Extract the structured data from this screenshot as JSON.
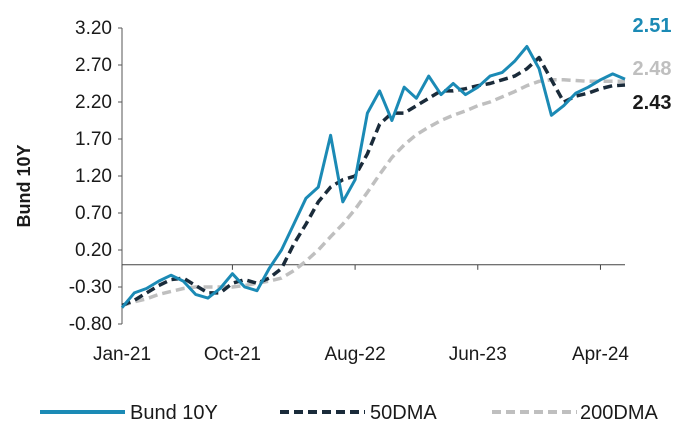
{
  "chart_data": {
    "type": "line",
    "ylabel": "Bund 10Y",
    "xlabel": "",
    "ylim": [
      -0.8,
      3.2
    ],
    "yticks": [
      "3.20",
      "2.70",
      "2.20",
      "1.70",
      "1.20",
      "0.70",
      "0.20",
      "-0.30",
      "-0.80"
    ],
    "xlim": [
      "2021-01",
      "2024-06"
    ],
    "xticks": [
      {
        "date": "2021-01",
        "label": "Jan-21"
      },
      {
        "date": "2021-10",
        "label": "Oct-21"
      },
      {
        "date": "2022-08",
        "label": "Aug-22"
      },
      {
        "date": "2023-06",
        "label": "Jun-23"
      },
      {
        "date": "2024-04",
        "label": "Apr-24"
      }
    ],
    "zero_line": 0,
    "legend_position": "bottom",
    "series": [
      {
        "name": "Bund 10Y",
        "color": "#1b8ab5",
        "style": "solid",
        "end_label": "2.51",
        "x": [
          "2021-01",
          "2021-02",
          "2021-03",
          "2021-04",
          "2021-05",
          "2021-06",
          "2021-07",
          "2021-08",
          "2021-09",
          "2021-10",
          "2021-11",
          "2021-12",
          "2022-01",
          "2022-02",
          "2022-03",
          "2022-04",
          "2022-05",
          "2022-06",
          "2022-07",
          "2022-08",
          "2022-09",
          "2022-10",
          "2022-11",
          "2022-12",
          "2023-01",
          "2023-02",
          "2023-03",
          "2023-04",
          "2023-05",
          "2023-06",
          "2023-07",
          "2023-08",
          "2023-09",
          "2023-10",
          "2023-11",
          "2023-12",
          "2024-01",
          "2024-02",
          "2024-03",
          "2024-04",
          "2024-05",
          "2024-06"
        ],
        "values": [
          -0.58,
          -0.38,
          -0.32,
          -0.22,
          -0.14,
          -0.22,
          -0.4,
          -0.45,
          -0.32,
          -0.12,
          -0.3,
          -0.35,
          -0.05,
          0.2,
          0.55,
          0.9,
          1.05,
          1.75,
          0.85,
          1.15,
          2.05,
          2.35,
          1.95,
          2.4,
          2.25,
          2.55,
          2.3,
          2.45,
          2.3,
          2.4,
          2.55,
          2.6,
          2.75,
          2.95,
          2.65,
          2.02,
          2.15,
          2.32,
          2.4,
          2.5,
          2.58,
          2.51
        ]
      },
      {
        "name": "50DMA",
        "color": "#1a2b3a",
        "style": "dashed",
        "end_label": "2.43",
        "x": [
          "2021-01",
          "2021-02",
          "2021-03",
          "2021-04",
          "2021-05",
          "2021-06",
          "2021-07",
          "2021-08",
          "2021-09",
          "2021-10",
          "2021-11",
          "2021-12",
          "2022-01",
          "2022-02",
          "2022-03",
          "2022-04",
          "2022-05",
          "2022-06",
          "2022-07",
          "2022-08",
          "2022-09",
          "2022-10",
          "2022-11",
          "2022-12",
          "2023-01",
          "2023-02",
          "2023-03",
          "2023-04",
          "2023-05",
          "2023-06",
          "2023-07",
          "2023-08",
          "2023-09",
          "2023-10",
          "2023-11",
          "2023-12",
          "2024-01",
          "2024-02",
          "2024-03",
          "2024-04",
          "2024-05",
          "2024-06"
        ],
        "values": [
          -0.55,
          -0.48,
          -0.38,
          -0.28,
          -0.2,
          -0.18,
          -0.28,
          -0.38,
          -0.38,
          -0.25,
          -0.2,
          -0.25,
          -0.18,
          -0.05,
          0.28,
          0.55,
          0.85,
          1.05,
          1.15,
          1.2,
          1.5,
          1.9,
          2.05,
          2.05,
          2.15,
          2.25,
          2.35,
          2.35,
          2.38,
          2.42,
          2.45,
          2.5,
          2.55,
          2.65,
          2.8,
          2.5,
          2.2,
          2.28,
          2.32,
          2.38,
          2.42,
          2.43
        ]
      },
      {
        "name": "200DMA",
        "color": "#bfbfbf",
        "style": "dashed",
        "end_label": "2.48",
        "x": [
          "2021-01",
          "2021-02",
          "2021-03",
          "2021-04",
          "2021-05",
          "2021-06",
          "2021-07",
          "2021-08",
          "2021-09",
          "2021-10",
          "2021-11",
          "2021-12",
          "2022-01",
          "2022-02",
          "2022-03",
          "2022-04",
          "2022-05",
          "2022-06",
          "2022-07",
          "2022-08",
          "2022-09",
          "2022-10",
          "2022-11",
          "2022-12",
          "2023-01",
          "2023-02",
          "2023-03",
          "2023-04",
          "2023-05",
          "2023-06",
          "2023-07",
          "2023-08",
          "2023-09",
          "2023-10",
          "2023-11",
          "2023-12",
          "2024-01",
          "2024-02",
          "2024-03",
          "2024-04",
          "2024-05",
          "2024-06"
        ],
        "values": [
          -0.55,
          -0.5,
          -0.46,
          -0.4,
          -0.36,
          -0.32,
          -0.3,
          -0.3,
          -0.3,
          -0.3,
          -0.28,
          -0.25,
          -0.22,
          -0.18,
          -0.08,
          0.05,
          0.2,
          0.38,
          0.55,
          0.75,
          0.98,
          1.22,
          1.45,
          1.62,
          1.76,
          1.86,
          1.95,
          2.02,
          2.08,
          2.15,
          2.2,
          2.27,
          2.34,
          2.42,
          2.48,
          2.5,
          2.5,
          2.49,
          2.48,
          2.48,
          2.48,
          2.48
        ]
      }
    ]
  }
}
